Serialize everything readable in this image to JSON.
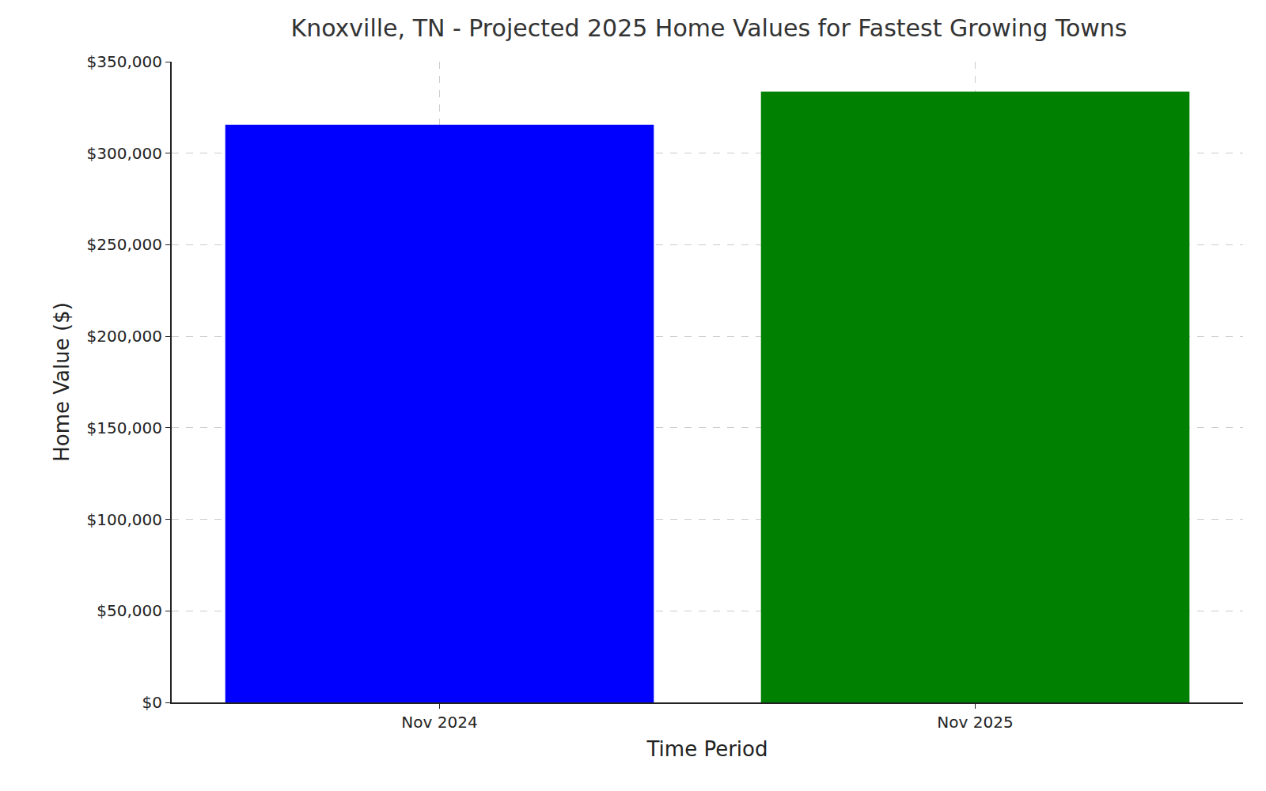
{
  "chart_data": {
    "type": "bar",
    "title": "Knoxville, TN - Projected 2025 Home Values for Fastest Growing Towns",
    "x_label": "Time Period",
    "y_label": "Home Value ($)",
    "categories": [
      "Nov 2024",
      "Nov 2025"
    ],
    "values": [
      315500,
      333700
    ],
    "colors": [
      "#0000ff",
      "#008000"
    ],
    "ylim": [
      0,
      350000
    ],
    "yticks": [
      {
        "value": 0,
        "label": "$0"
      },
      {
        "value": 50000,
        "label": "$50,000"
      },
      {
        "value": 100000,
        "label": "$100,000"
      },
      {
        "value": 150000,
        "label": "$150,000"
      },
      {
        "value": 200000,
        "label": "$200,000"
      },
      {
        "value": 250000,
        "label": "$250,000"
      },
      {
        "value": 300000,
        "label": "$300,000"
      },
      {
        "value": 350000,
        "label": "$350,000"
      }
    ],
    "grid": true
  }
}
